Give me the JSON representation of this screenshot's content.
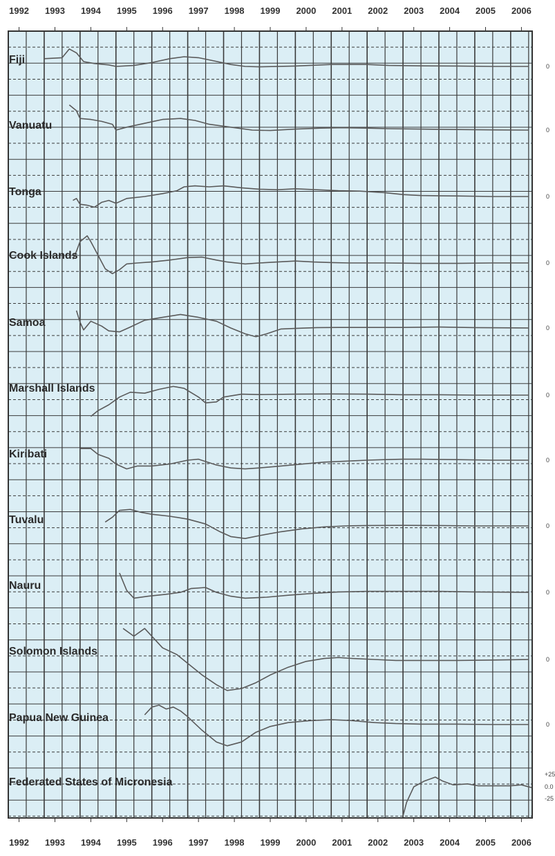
{
  "chart_data": {
    "type": "line",
    "title": "",
    "xlabel": "",
    "ylabel": "",
    "x_ticks": [
      "1992",
      "1993",
      "1994",
      "1995",
      "1996",
      "1997",
      "1998",
      "1999",
      "2000",
      "2001",
      "2002",
      "2003",
      "2004",
      "2005",
      "2006"
    ],
    "xlim": [
      1992,
      2006.6
    ],
    "grid": true,
    "colors": {
      "background": "#dbeef5",
      "grid": "#3a3a3a",
      "line": "#5a5a5a",
      "text": "#333333"
    },
    "panel_ylim": [
      -2,
      2
    ],
    "extra_tick_labels": [
      "+25",
      "0.0",
      "-25"
    ],
    "series": [
      {
        "name": "Fiji",
        "zero_label": "0",
        "points": [
          [
            1993.0,
            0.4
          ],
          [
            1993.5,
            0.45
          ],
          [
            1993.7,
            0.9
          ],
          [
            1993.9,
            0.7
          ],
          [
            1994.1,
            0.25
          ],
          [
            1994.4,
            0.15
          ],
          [
            1994.8,
            0.08
          ],
          [
            1995.0,
            0.0
          ],
          [
            1995.5,
            0.05
          ],
          [
            1996.0,
            0.2
          ],
          [
            1996.5,
            0.4
          ],
          [
            1996.9,
            0.5
          ],
          [
            1997.3,
            0.45
          ],
          [
            1997.7,
            0.3
          ],
          [
            1998.2,
            0.1
          ],
          [
            1998.6,
            0.0
          ],
          [
            1999.0,
            -0.02
          ],
          [
            2000.0,
            0.02
          ],
          [
            2001.0,
            0.1
          ],
          [
            2002.0,
            0.1
          ],
          [
            2002.6,
            0.05
          ],
          [
            2003.5,
            0.03
          ],
          [
            2004.5,
            0.02
          ],
          [
            2005.5,
            0.0
          ],
          [
            2006.5,
            0.0
          ]
        ]
      },
      {
        "name": "Vanuatu",
        "zero_label": "0",
        "points": [
          [
            1993.7,
            1.3
          ],
          [
            1993.9,
            1.0
          ],
          [
            1994.0,
            0.6
          ],
          [
            1994.3,
            0.55
          ],
          [
            1994.6,
            0.45
          ],
          [
            1994.9,
            0.3
          ],
          [
            1995.0,
            0.0
          ],
          [
            1995.3,
            0.15
          ],
          [
            1995.8,
            0.35
          ],
          [
            1996.3,
            0.55
          ],
          [
            1996.8,
            0.6
          ],
          [
            1997.2,
            0.5
          ],
          [
            1997.6,
            0.3
          ],
          [
            1998.2,
            0.15
          ],
          [
            1998.8,
            0.0
          ],
          [
            1999.3,
            -0.02
          ],
          [
            2000.0,
            0.05
          ],
          [
            2000.7,
            0.1
          ],
          [
            2001.3,
            0.12
          ],
          [
            2002.0,
            0.1
          ],
          [
            2002.6,
            0.07
          ],
          [
            2003.5,
            0.05
          ],
          [
            2004.5,
            0.03
          ],
          [
            2005.5,
            0.01
          ],
          [
            2006.5,
            0.0
          ]
        ]
      },
      {
        "name": "Tonga",
        "zero_label": "0",
        "points": [
          [
            1993.8,
            -0.2
          ],
          [
            1993.9,
            -0.1
          ],
          [
            1994.0,
            -0.4
          ],
          [
            1994.2,
            -0.45
          ],
          [
            1994.4,
            -0.55
          ],
          [
            1994.6,
            -0.3
          ],
          [
            1994.8,
            -0.2
          ],
          [
            1995.0,
            -0.35
          ],
          [
            1995.3,
            -0.1
          ],
          [
            1995.8,
            0.0
          ],
          [
            1996.3,
            0.15
          ],
          [
            1996.7,
            0.3
          ],
          [
            1996.9,
            0.5
          ],
          [
            1997.2,
            0.55
          ],
          [
            1997.6,
            0.5
          ],
          [
            1998.0,
            0.55
          ],
          [
            1998.5,
            0.45
          ],
          [
            1999.0,
            0.38
          ],
          [
            1999.5,
            0.35
          ],
          [
            2000.0,
            0.4
          ],
          [
            2000.6,
            0.35
          ],
          [
            2001.2,
            0.3
          ],
          [
            2001.8,
            0.28
          ],
          [
            2002.5,
            0.2
          ],
          [
            2003.0,
            0.1
          ],
          [
            2003.5,
            0.05
          ],
          [
            2004.5,
            0.03
          ],
          [
            2005.5,
            0.0
          ],
          [
            2006.5,
            0.0
          ]
        ]
      },
      {
        "name": "Cook Islands",
        "zero_label": "0",
        "points": [
          [
            1993.8,
            0.2
          ],
          [
            1993.9,
            0.6
          ],
          [
            1994.0,
            1.1
          ],
          [
            1994.2,
            1.4
          ],
          [
            1994.3,
            1.1
          ],
          [
            1994.5,
            0.4
          ],
          [
            1994.7,
            -0.3
          ],
          [
            1994.9,
            -0.55
          ],
          [
            1995.1,
            -0.35
          ],
          [
            1995.3,
            -0.05
          ],
          [
            1995.6,
            0.0
          ],
          [
            1996.0,
            0.05
          ],
          [
            1996.5,
            0.15
          ],
          [
            1997.0,
            0.28
          ],
          [
            1997.4,
            0.3
          ],
          [
            1997.8,
            0.15
          ],
          [
            1998.1,
            0.05
          ],
          [
            1998.6,
            -0.05
          ],
          [
            1999.0,
            0.0
          ],
          [
            1999.5,
            0.05
          ],
          [
            2000.0,
            0.1
          ],
          [
            2000.5,
            0.05
          ],
          [
            2001.0,
            0.02
          ],
          [
            2001.5,
            0.0
          ],
          [
            2002.5,
            0.0
          ],
          [
            2003.5,
            -0.02
          ],
          [
            2004.5,
            -0.02
          ],
          [
            2005.5,
            0.0
          ],
          [
            2006.5,
            0.0
          ]
        ]
      },
      {
        "name": "Samoa",
        "zero_label": "0",
        "points": [
          [
            1993.9,
            0.9
          ],
          [
            1994.0,
            0.3
          ],
          [
            1994.1,
            -0.1
          ],
          [
            1994.3,
            0.35
          ],
          [
            1994.6,
            0.1
          ],
          [
            1994.8,
            -0.15
          ],
          [
            1995.1,
            -0.2
          ],
          [
            1995.4,
            0.05
          ],
          [
            1995.8,
            0.4
          ],
          [
            1996.3,
            0.55
          ],
          [
            1996.8,
            0.7
          ],
          [
            1997.3,
            0.55
          ],
          [
            1997.8,
            0.35
          ],
          [
            1998.2,
            0.0
          ],
          [
            1998.6,
            -0.3
          ],
          [
            1998.9,
            -0.45
          ],
          [
            1999.2,
            -0.3
          ],
          [
            1999.6,
            -0.05
          ],
          [
            2000.0,
            -0.02
          ],
          [
            2000.6,
            0.02
          ],
          [
            2001.2,
            0.03
          ],
          [
            2002.0,
            0.03
          ],
          [
            2003.0,
            0.03
          ],
          [
            2004.0,
            0.05
          ],
          [
            2005.0,
            0.02
          ],
          [
            2006.5,
            0.0
          ]
        ]
      },
      {
        "name": "Marshall Islands",
        "zero_label": "0",
        "points": [
          [
            1994.3,
            -1.1
          ],
          [
            1994.5,
            -0.8
          ],
          [
            1994.8,
            -0.5
          ],
          [
            1995.1,
            -0.1
          ],
          [
            1995.4,
            0.15
          ],
          [
            1995.8,
            0.1
          ],
          [
            1996.2,
            0.3
          ],
          [
            1996.6,
            0.45
          ],
          [
            1996.9,
            0.35
          ],
          [
            1997.3,
            -0.1
          ],
          [
            1997.5,
            -0.4
          ],
          [
            1997.8,
            -0.35
          ],
          [
            1998.0,
            -0.1
          ],
          [
            1998.5,
            0.05
          ],
          [
            1999.0,
            0.03
          ],
          [
            2000.0,
            0.05
          ],
          [
            2001.0,
            0.06
          ],
          [
            2002.0,
            0.05
          ],
          [
            2003.0,
            0.02
          ],
          [
            2004.0,
            0.02
          ],
          [
            2005.0,
            0.0
          ],
          [
            2006.5,
            0.0
          ]
        ]
      },
      {
        "name": "Kiribati",
        "zero_label": "0",
        "points": [
          [
            1994.0,
            0.6
          ],
          [
            1994.3,
            0.6
          ],
          [
            1994.5,
            0.3
          ],
          [
            1994.8,
            0.1
          ],
          [
            1995.0,
            -0.2
          ],
          [
            1995.3,
            -0.45
          ],
          [
            1995.6,
            -0.3
          ],
          [
            1996.0,
            -0.3
          ],
          [
            1996.5,
            -0.2
          ],
          [
            1997.0,
            0.0
          ],
          [
            1997.3,
            0.05
          ],
          [
            1997.8,
            -0.25
          ],
          [
            1998.2,
            -0.4
          ],
          [
            1998.6,
            -0.45
          ],
          [
            1999.0,
            -0.4
          ],
          [
            1999.6,
            -0.3
          ],
          [
            2000.2,
            -0.2
          ],
          [
            2000.8,
            -0.1
          ],
          [
            2001.4,
            -0.05
          ],
          [
            2002.0,
            0.0
          ],
          [
            2002.5,
            0.03
          ],
          [
            2003.0,
            0.05
          ],
          [
            2003.5,
            0.05
          ],
          [
            2004.5,
            0.03
          ],
          [
            2005.5,
            0.0
          ],
          [
            2006.5,
            0.0
          ]
        ]
      },
      {
        "name": "Tuvalu",
        "zero_label": "0",
        "points": [
          [
            1994.7,
            0.2
          ],
          [
            1994.9,
            0.45
          ],
          [
            1995.1,
            0.8
          ],
          [
            1995.4,
            0.85
          ],
          [
            1995.7,
            0.7
          ],
          [
            1996.0,
            0.6
          ],
          [
            1996.5,
            0.5
          ],
          [
            1997.0,
            0.35
          ],
          [
            1997.5,
            0.1
          ],
          [
            1997.9,
            -0.3
          ],
          [
            1998.2,
            -0.55
          ],
          [
            1998.6,
            -0.65
          ],
          [
            1999.0,
            -0.5
          ],
          [
            1999.6,
            -0.3
          ],
          [
            2000.2,
            -0.15
          ],
          [
            2000.8,
            -0.05
          ],
          [
            2001.4,
            0.0
          ],
          [
            2002.0,
            0.02
          ],
          [
            2003.0,
            0.03
          ],
          [
            2004.0,
            0.02
          ],
          [
            2005.0,
            0.0
          ],
          [
            2006.5,
            0.0
          ]
        ]
      },
      {
        "name": "Nauru",
        "zero_label": "0",
        "points": [
          [
            1995.1,
            1.0
          ],
          [
            1995.3,
            0.1
          ],
          [
            1995.5,
            -0.3
          ],
          [
            1995.9,
            -0.2
          ],
          [
            1996.4,
            -0.1
          ],
          [
            1996.8,
            0.0
          ],
          [
            1997.1,
            0.2
          ],
          [
            1997.5,
            0.25
          ],
          [
            1997.8,
            0.0
          ],
          [
            1998.2,
            -0.2
          ],
          [
            1998.6,
            -0.3
          ],
          [
            1999.2,
            -0.25
          ],
          [
            1999.8,
            -0.15
          ],
          [
            2000.5,
            -0.05
          ],
          [
            2001.2,
            0.02
          ],
          [
            2002.0,
            0.05
          ],
          [
            2003.0,
            0.05
          ],
          [
            2004.0,
            0.05
          ],
          [
            2005.0,
            0.02
          ],
          [
            2006.5,
            0.0
          ]
        ]
      },
      {
        "name": "Solomon Islands",
        "zero_label": "0",
        "points": [
          [
            1995.2,
            1.6
          ],
          [
            1995.5,
            1.2
          ],
          [
            1995.8,
            1.6
          ],
          [
            1996.0,
            1.2
          ],
          [
            1996.3,
            0.6
          ],
          [
            1996.7,
            0.25
          ],
          [
            1997.0,
            -0.2
          ],
          [
            1997.4,
            -0.8
          ],
          [
            1997.8,
            -1.3
          ],
          [
            1998.1,
            -1.6
          ],
          [
            1998.5,
            -1.5
          ],
          [
            1998.9,
            -1.2
          ],
          [
            1999.3,
            -0.8
          ],
          [
            1999.8,
            -0.4
          ],
          [
            2000.3,
            -0.1
          ],
          [
            2000.8,
            0.05
          ],
          [
            2001.2,
            0.1
          ],
          [
            2001.6,
            0.05
          ],
          [
            2002.2,
            0.0
          ],
          [
            2002.8,
            -0.05
          ],
          [
            2003.5,
            -0.05
          ],
          [
            2004.5,
            -0.05
          ],
          [
            2005.5,
            -0.03
          ],
          [
            2006.5,
            0.0
          ]
        ]
      },
      {
        "name": "Papua New Guinea",
        "zero_label": "0",
        "points": [
          [
            1995.8,
            0.5
          ],
          [
            1996.0,
            0.9
          ],
          [
            1996.2,
            1.0
          ],
          [
            1996.4,
            0.8
          ],
          [
            1996.6,
            0.9
          ],
          [
            1996.8,
            0.7
          ],
          [
            1997.0,
            0.4
          ],
          [
            1997.4,
            -0.3
          ],
          [
            1997.8,
            -0.9
          ],
          [
            1998.1,
            -1.1
          ],
          [
            1998.5,
            -0.9
          ],
          [
            1998.9,
            -0.4
          ],
          [
            1999.3,
            -0.1
          ],
          [
            1999.8,
            0.1
          ],
          [
            2000.4,
            0.2
          ],
          [
            2001.0,
            0.25
          ],
          [
            2001.6,
            0.2
          ],
          [
            2002.2,
            0.1
          ],
          [
            2002.8,
            0.05
          ],
          [
            2003.5,
            0.02
          ],
          [
            2004.5,
            0.02
          ],
          [
            2005.5,
            0.0
          ],
          [
            2006.5,
            0.0
          ]
        ]
      },
      {
        "name": "Federated States of Micronesia",
        "zero_label": "",
        "points": [
          [
            2003.0,
            -1.5
          ],
          [
            2003.1,
            -0.8
          ],
          [
            2003.3,
            0.0
          ],
          [
            2003.6,
            0.3
          ],
          [
            2003.9,
            0.5
          ],
          [
            2004.1,
            0.3
          ],
          [
            2004.4,
            0.1
          ],
          [
            2004.8,
            0.15
          ],
          [
            2005.1,
            0.05
          ],
          [
            2005.6,
            0.05
          ],
          [
            2006.0,
            0.05
          ],
          [
            2006.3,
            0.1
          ],
          [
            2006.6,
            -0.05
          ]
        ]
      }
    ]
  }
}
